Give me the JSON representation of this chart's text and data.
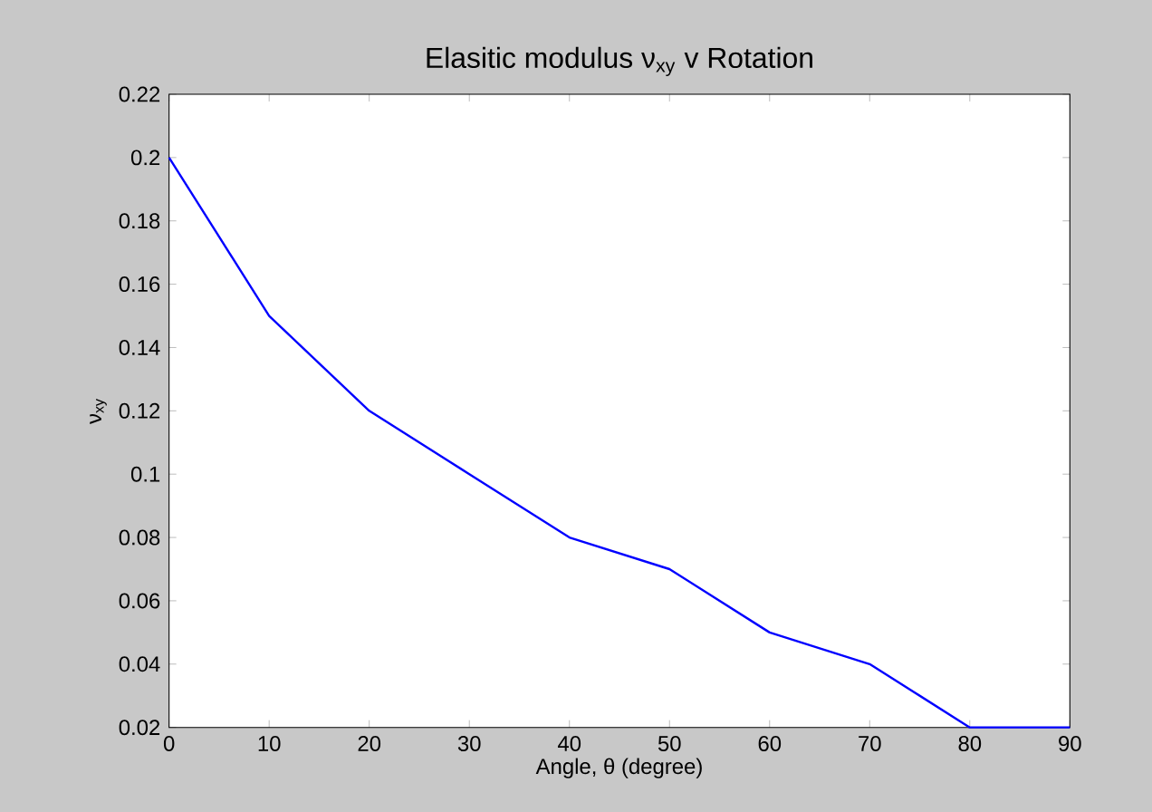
{
  "chart_data": {
    "type": "line",
    "title": "Elasitic modulus ν$_{xy}$ v Rotation",
    "xlabel": "Angle, θ (degree)",
    "ylabel": "ν$_{xy}$",
    "x": [
      0,
      10,
      20,
      30,
      40,
      50,
      60,
      70,
      80,
      90
    ],
    "series": [
      {
        "color": "#0000ff",
        "values": [
          0.2,
          0.15,
          0.12,
          0.1,
          0.08,
          0.07,
          0.05,
          0.04,
          0.02,
          0.02
        ]
      }
    ],
    "xlim": [
      0,
      90
    ],
    "ylim": [
      0.02,
      0.22
    ],
    "xticks": [
      0,
      10,
      20,
      30,
      40,
      50,
      60,
      70,
      80,
      90
    ],
    "yticks": [
      0.02,
      0.04,
      0.06,
      0.08,
      0.1,
      0.12,
      0.14,
      0.16,
      0.18,
      0.2,
      0.22
    ],
    "grid": false
  }
}
